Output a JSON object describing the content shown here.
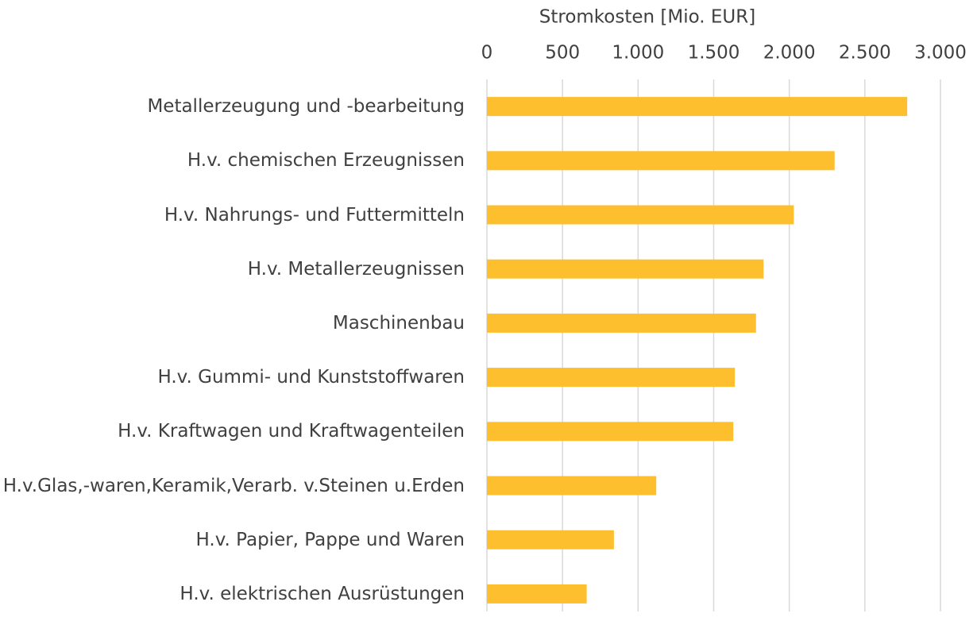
{
  "chart_data": {
    "type": "hbar",
    "x_label": "Stromkosten [Mio. EUR]",
    "categories": [
      "Metallerzeugung und -bearbeitung",
      "H.v. chemischen Erzeugnissen",
      "H.v. Nahrungs- und Futtermitteln",
      "H.v. Metallerzeugnissen",
      "Maschinenbau",
      "H.v. Gummi- und Kunststoffwaren",
      "H.v. Kraftwagen und Kraftwagenteilen",
      "H.v.Glas,-waren,Keramik,Verarb. v.Steinen u.Erden",
      "H.v. Papier, Pappe und Waren",
      "H.v. elektrischen Ausrüstungen"
    ],
    "values": [
      2780,
      2300,
      2030,
      1830,
      1780,
      1640,
      1630,
      1120,
      840,
      660
    ],
    "color": "#fdbf2d",
    "xlim": [
      0,
      3000
    ],
    "xticks": [
      0,
      500,
      {
        "value": 1000,
        "label": "1.000"
      },
      {
        "value": 1500,
        "label": "1.500"
      },
      {
        "value": 2000,
        "label": "2.000"
      },
      {
        "value": 2500,
        "label": "2.500"
      },
      {
        "value": 3000,
        "label": "3.000"
      }
    ],
    "grid": true
  }
}
